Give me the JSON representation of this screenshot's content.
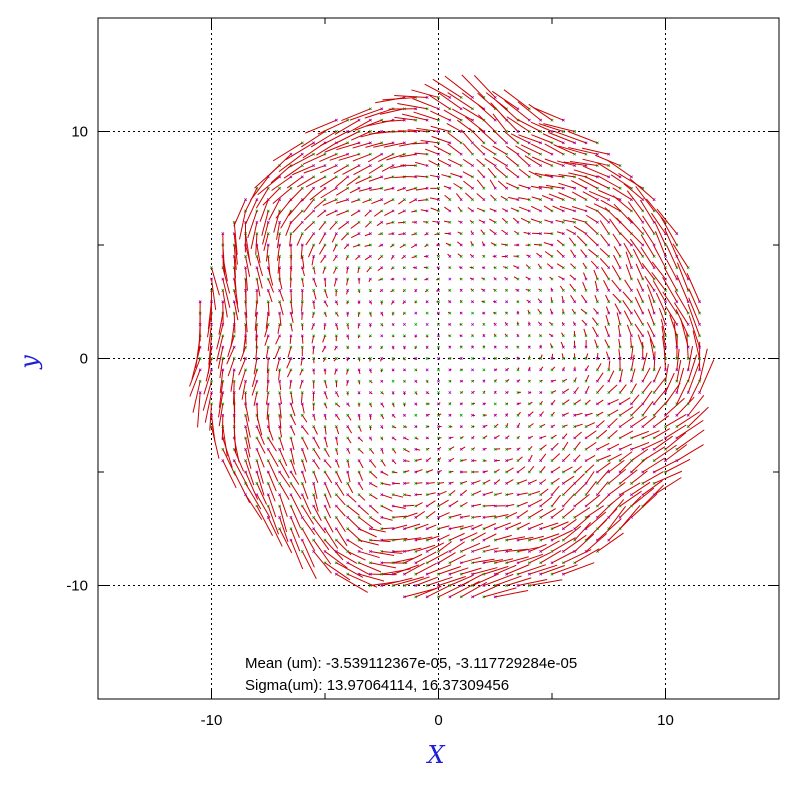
{
  "chart_data": {
    "type": "quiver",
    "xlabel": "X",
    "ylabel": "y",
    "xlim": [
      -15,
      15
    ],
    "ylim": [
      -15,
      15
    ],
    "xticks": [
      -10,
      0,
      10
    ],
    "yticks": [
      -10,
      0,
      10
    ],
    "xtick_labels": [
      "-10",
      "0",
      "10"
    ],
    "ytick_labels": [
      "-10",
      "0",
      "10"
    ],
    "grid": true,
    "grid_lines": [
      -10,
      0,
      10
    ],
    "field": {
      "shape": "disk",
      "center": [
        0.5,
        0.5
      ],
      "radius": 11.2,
      "step": 0.5,
      "vector_color": "#cc0000",
      "marker_colors": [
        "#00aa00",
        "#a000c8"
      ],
      "description_of_pattern": "displacement vectors grow toward the disk edge, mostly tangential along the rim"
    },
    "annotations": [
      {
        "label": "Mean (um):",
        "value": "-3.539112367e-05, -3.117729284e-05"
      },
      {
        "label": "Sigma(um):",
        "value": "13.97064114, 16.37309456"
      }
    ],
    "colors": {
      "axis_label": "#1f1fd6",
      "vector": "#cc0000",
      "grid": "#000000"
    }
  }
}
